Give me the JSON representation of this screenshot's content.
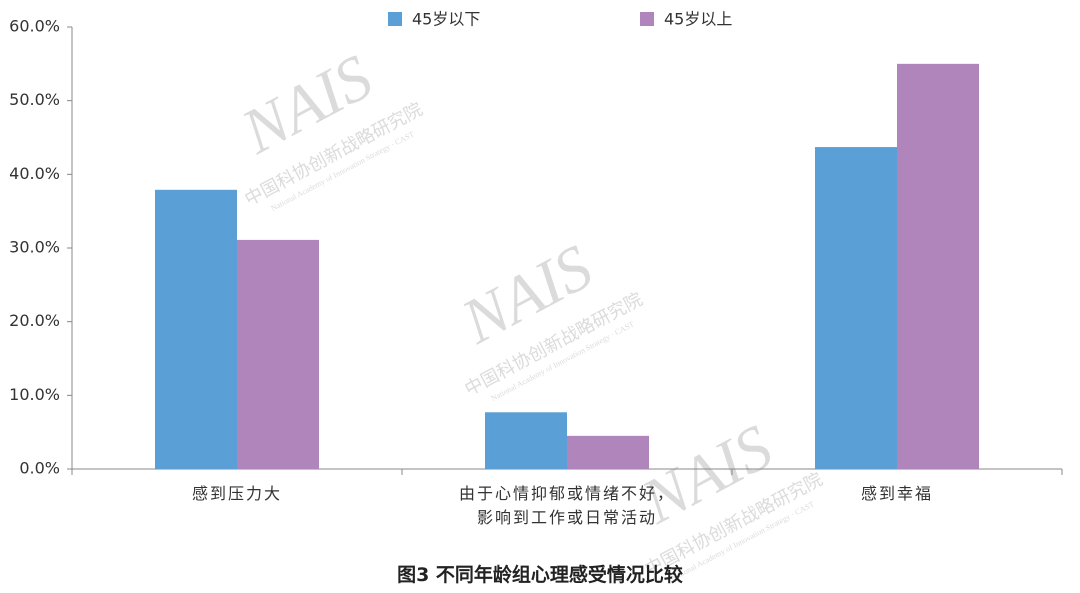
{
  "chart_data": {
    "type": "bar",
    "title": "图3 不同年龄组心理感受情况比较",
    "categories": [
      "感到压力大",
      "由于心情抑郁或情绪不好，\n影响到工作或日常活动",
      "感到幸福"
    ],
    "series": [
      {
        "name": "45岁以下",
        "color": "#5a9fd5",
        "values": [
          37.9,
          7.7,
          43.7
        ]
      },
      {
        "name": "45岁以上",
        "color": "#b085bb",
        "values": [
          31.1,
          4.5,
          55.0
        ]
      }
    ],
    "ylim": [
      0,
      60
    ],
    "yticks": [
      {
        "value": 0,
        "label": "0.0%"
      },
      {
        "value": 10,
        "label": "10.0%"
      },
      {
        "value": 20,
        "label": "20.0%"
      },
      {
        "value": 30,
        "label": "30.0%"
      },
      {
        "value": 40,
        "label": "40.0%"
      },
      {
        "value": 50,
        "label": "50.0%"
      },
      {
        "value": 60,
        "label": "60.0%"
      }
    ],
    "grid": false,
    "legend": "top",
    "watermark": {
      "logo": "NAIS",
      "org_cn": "中国科协创新战略研究院",
      "org_en": "National Academy of Innovation Strategy · CAST"
    }
  }
}
